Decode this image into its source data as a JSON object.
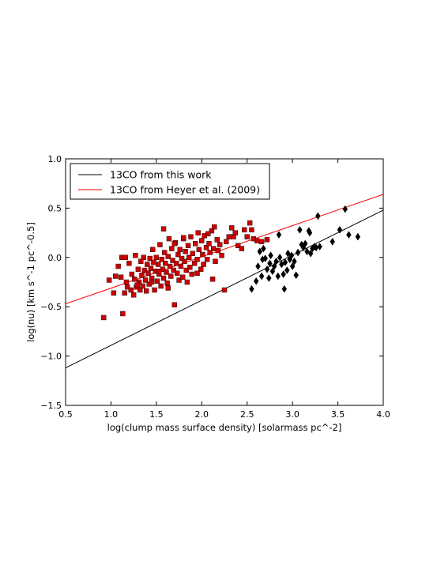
{
  "chart_data": {
    "type": "scatter",
    "xlabel": "log(clump mass surface density) [solarmass pc^-2]",
    "ylabel": "log(nu) [km s^-1 pc^-0.5]",
    "xlim": [
      0.5,
      4.0
    ],
    "ylim": [
      -1.5,
      1.0
    ],
    "xticks": [
      "0.5",
      "1.0",
      "1.5",
      "2.0",
      "2.5",
      "3.0",
      "3.5",
      "4.0"
    ],
    "yticks": [
      "1.0",
      "0.5",
      "0.0",
      "−0.5",
      "−1.0",
      "−1.5"
    ],
    "grid": false,
    "legend_position": "top-left",
    "lines": [
      {
        "name": "13CO from this work",
        "color": "#000000",
        "x": [
          0.5,
          4.0
        ],
        "y": [
          -1.12,
          0.48
        ]
      },
      {
        "name": "13CO from Heyer et al. (2009)",
        "color": "#ff0000",
        "x": [
          0.5,
          4.0
        ],
        "y": [
          -0.47,
          0.64
        ]
      }
    ],
    "series": [
      {
        "marker": "square",
        "color": "#cc0000",
        "points": [
          [
            0.92,
            -0.61
          ],
          [
            0.98,
            -0.23
          ],
          [
            1.03,
            -0.36
          ],
          [
            1.05,
            -0.19
          ],
          [
            1.08,
            -0.09
          ],
          [
            1.11,
            -0.2
          ],
          [
            1.12,
            0.0
          ],
          [
            1.13,
            -0.57
          ],
          [
            1.15,
            -0.36
          ],
          [
            1.17,
            -0.25
          ],
          [
            1.18,
            -0.3
          ],
          [
            1.2,
            -0.06
          ],
          [
            1.22,
            -0.33
          ],
          [
            1.23,
            -0.17
          ],
          [
            1.25,
            -0.38
          ],
          [
            1.26,
            -0.22
          ],
          [
            1.27,
            0.02
          ],
          [
            1.28,
            -0.3
          ],
          [
            1.3,
            -0.12
          ],
          [
            1.31,
            -0.25
          ],
          [
            1.32,
            -0.33
          ],
          [
            1.33,
            -0.04
          ],
          [
            1.34,
            -0.18
          ],
          [
            1.35,
            -0.29
          ],
          [
            1.36,
            0.0
          ],
          [
            1.37,
            -0.13
          ],
          [
            1.38,
            -0.23
          ],
          [
            1.39,
            -0.34
          ],
          [
            1.4,
            -0.07
          ],
          [
            1.41,
            -0.16
          ],
          [
            1.42,
            -0.27
          ],
          [
            1.43,
            -0.01
          ],
          [
            1.44,
            -0.11
          ],
          [
            1.45,
            -0.21
          ],
          [
            1.46,
            0.08
          ],
          [
            1.47,
            -0.05
          ],
          [
            1.48,
            -0.33
          ],
          [
            1.49,
            -0.14
          ],
          [
            1.5,
            0.0
          ],
          [
            1.51,
            -0.24
          ],
          [
            1.52,
            -0.07
          ],
          [
            1.53,
            -0.17
          ],
          [
            1.54,
            0.13
          ],
          [
            1.55,
            -0.29
          ],
          [
            1.56,
            -0.02
          ],
          [
            1.57,
            -0.12
          ],
          [
            1.58,
            -0.21
          ],
          [
            1.59,
            0.05
          ],
          [
            1.6,
            -0.06
          ],
          [
            1.61,
            -0.15
          ],
          [
            1.62,
            -0.26
          ],
          [
            1.63,
            0.01
          ],
          [
            1.64,
            0.19
          ],
          [
            1.65,
            -0.09
          ],
          [
            1.66,
            -0.19
          ],
          [
            1.67,
            0.09
          ],
          [
            1.68,
            -0.03
          ],
          [
            1.69,
            -0.13
          ],
          [
            1.7,
            -0.48
          ],
          [
            1.71,
            0.15
          ],
          [
            1.72,
            -0.06
          ],
          [
            1.73,
            -0.16
          ],
          [
            1.74,
            0.03
          ],
          [
            1.75,
            -0.23
          ],
          [
            1.76,
            0.08
          ],
          [
            1.77,
            -0.09
          ],
          [
            1.78,
            -0.01
          ],
          [
            1.79,
            -0.2
          ],
          [
            1.8,
            0.19
          ],
          [
            1.81,
            -0.04
          ],
          [
            1.82,
            0.06
          ],
          [
            1.83,
            -0.13
          ],
          [
            1.84,
            -0.25
          ],
          [
            1.85,
            0.12
          ],
          [
            1.86,
            0.0
          ],
          [
            1.87,
            -0.1
          ],
          [
            1.88,
            0.21
          ],
          [
            1.89,
            -0.17
          ],
          [
            1.9,
            0.04
          ],
          [
            1.92,
            -0.06
          ],
          [
            1.93,
            0.14
          ],
          [
            1.95,
            -0.02
          ],
          [
            1.96,
            0.25
          ],
          [
            1.97,
            0.08
          ],
          [
            1.99,
            -0.12
          ],
          [
            2.0,
            0.17
          ],
          [
            2.01,
            0.03
          ],
          [
            2.02,
            -0.07
          ],
          [
            2.03,
            0.22
          ],
          [
            2.05,
            0.1
          ],
          [
            2.06,
            -0.02
          ],
          [
            2.08,
            0.14
          ],
          [
            2.09,
            0.05
          ],
          [
            2.11,
            0.27
          ],
          [
            2.12,
            -0.22
          ],
          [
            2.13,
            0.09
          ],
          [
            2.14,
            0.31
          ],
          [
            2.15,
            -0.04
          ],
          [
            2.17,
            0.18
          ],
          [
            2.18,
            0.07
          ],
          [
            2.2,
            0.13
          ],
          [
            2.22,
            0.02
          ],
          [
            2.25,
            -0.33
          ],
          [
            2.27,
            0.16
          ],
          [
            2.3,
            0.21
          ],
          [
            2.33,
            0.3
          ],
          [
            2.35,
            0.21
          ],
          [
            2.37,
            0.25
          ],
          [
            2.4,
            0.12
          ],
          [
            2.44,
            0.09
          ],
          [
            2.47,
            0.28
          ],
          [
            2.5,
            0.21
          ],
          [
            2.53,
            0.35
          ],
          [
            2.55,
            0.28
          ],
          [
            2.57,
            0.19
          ],
          [
            2.61,
            0.17
          ],
          [
            2.66,
            0.16
          ],
          [
            2.72,
            0.18
          ],
          [
            1.16,
            0.0
          ],
          [
            1.29,
            -0.28
          ],
          [
            1.53,
            -0.14
          ],
          [
            1.7,
            0.14
          ],
          [
            1.95,
            -0.16
          ],
          [
            2.07,
            0.24
          ],
          [
            1.58,
            0.29
          ],
          [
            1.8,
            0.2
          ],
          [
            1.63,
            -0.31
          ],
          [
            1.45,
            -0.25
          ]
        ]
      },
      {
        "marker": "diamond",
        "color": "#000000",
        "points": [
          [
            2.55,
            -0.32
          ],
          [
            2.6,
            -0.24
          ],
          [
            2.62,
            -0.09
          ],
          [
            2.64,
            0.06
          ],
          [
            2.66,
            -0.19
          ],
          [
            2.67,
            -0.02
          ],
          [
            2.68,
            0.09
          ],
          [
            2.7,
            -0.01
          ],
          [
            2.72,
            -0.12
          ],
          [
            2.74,
            -0.21
          ],
          [
            2.75,
            -0.06
          ],
          [
            2.76,
            0.02
          ],
          [
            2.78,
            -0.14
          ],
          [
            2.8,
            -0.09
          ],
          [
            2.82,
            -0.04
          ],
          [
            2.84,
            -0.19
          ],
          [
            2.85,
            0.23
          ],
          [
            2.86,
            0.0
          ],
          [
            2.88,
            -0.07
          ],
          [
            2.9,
            -0.17
          ],
          [
            2.91,
            -0.32
          ],
          [
            2.92,
            -0.05
          ],
          [
            2.94,
            -0.13
          ],
          [
            2.95,
            0.04
          ],
          [
            2.97,
            -0.02
          ],
          [
            2.99,
            0.02
          ],
          [
            3.0,
            -0.09
          ],
          [
            3.02,
            -0.04
          ],
          [
            3.04,
            -0.18
          ],
          [
            3.06,
            0.05
          ],
          [
            3.08,
            0.28
          ],
          [
            3.1,
            0.13
          ],
          [
            3.12,
            0.1
          ],
          [
            3.14,
            0.14
          ],
          [
            3.16,
            0.06
          ],
          [
            3.18,
            0.27
          ],
          [
            3.2,
            0.04
          ],
          [
            3.22,
            0.09
          ],
          [
            3.24,
            0.11
          ],
          [
            3.26,
            0.1
          ],
          [
            3.28,
            0.42
          ],
          [
            3.3,
            0.11
          ],
          [
            3.44,
            0.16
          ],
          [
            3.52,
            0.28
          ],
          [
            3.58,
            0.49
          ],
          [
            3.62,
            0.23
          ],
          [
            3.72,
            0.21
          ],
          [
            3.19,
            0.25
          ]
        ]
      }
    ]
  }
}
